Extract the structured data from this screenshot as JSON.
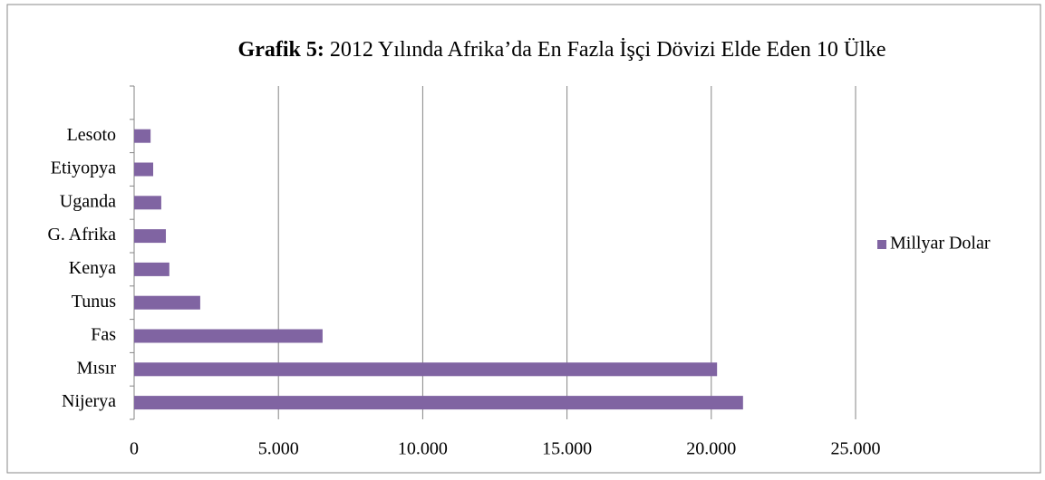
{
  "chart_data": {
    "type": "bar",
    "orientation": "horizontal",
    "title_label": "Grafik 5:",
    "title": "2012 Yılında Afrika’da En Fazla İşçi Dövizi Elde Eden 10 Ülke",
    "categories": [
      "Nijerya",
      "Mısır",
      "Fas",
      "Tunus",
      "Kenya",
      "G. Afrika",
      "Uganda",
      "Etiyopya",
      "Lesoto",
      null
    ],
    "series": [
      {
        "name": "Millyar Dolar",
        "color": "#8064a2",
        "values": [
          21100,
          20200,
          6530,
          2290,
          1220,
          1100,
          940,
          660,
          570,
          null
        ]
      }
    ],
    "xlim": [
      0,
      25000
    ],
    "xticks": [
      0,
      {
        "value": 5000,
        "label": "5.000"
      },
      {
        "value": 10000,
        "label": "10.000"
      },
      {
        "value": 15000,
        "label": "15.000"
      },
      {
        "value": 20000,
        "label": "20.000"
      },
      {
        "value": 25000,
        "label": "25.000"
      }
    ],
    "grid": true,
    "legend": "right"
  }
}
